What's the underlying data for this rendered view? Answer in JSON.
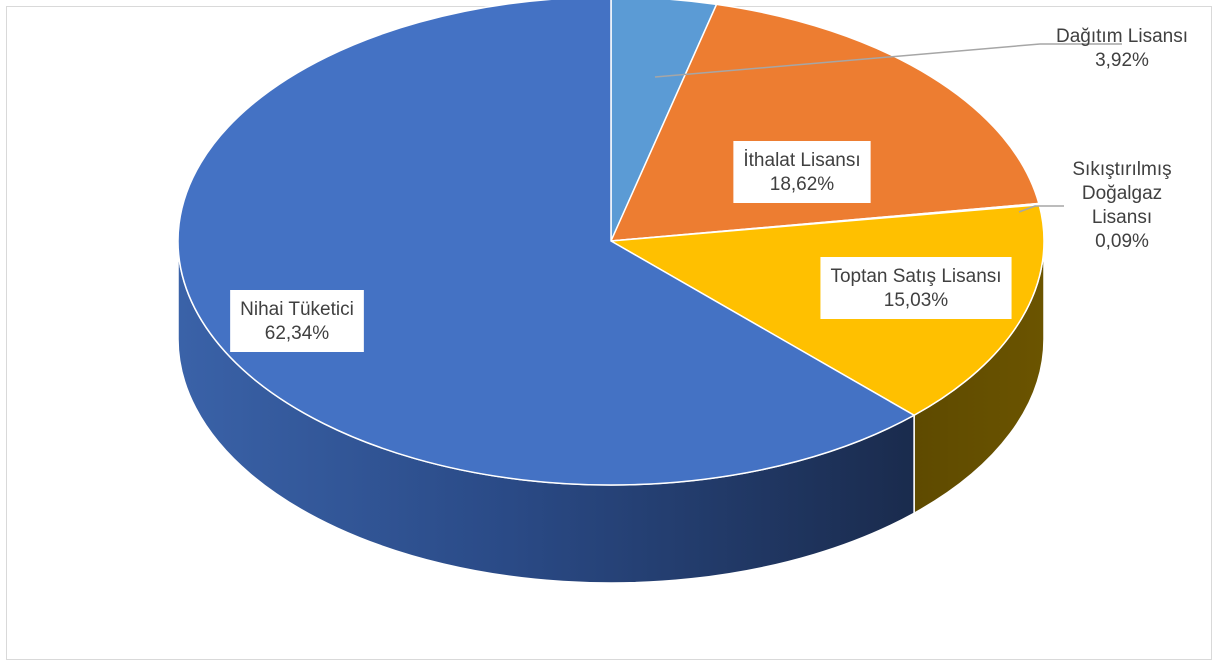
{
  "chart_data": {
    "type": "pie",
    "title": "",
    "slices": [
      {
        "label": "Dağıtım Lisansı",
        "value": 3.92,
        "display": "3,92%",
        "color": "#5b9bd5"
      },
      {
        "label": "İthalat Lisansı",
        "value": 18.62,
        "display": "18,62%",
        "color": "#ed7d31"
      },
      {
        "label": "Sıkıştırılmış Doğalgaz Lisansı",
        "label_lines": [
          "Sıkıştırılmış",
          "Doğalgaz",
          "Lisansı"
        ],
        "value": 0.09,
        "display": "0,09%",
        "color": "#a5a5a5"
      },
      {
        "label": "Toptan Satış Lisansı",
        "value": 15.03,
        "display": "15,03%",
        "color": "#ffc000"
      },
      {
        "label": "Nihai Tüketici",
        "value": 62.34,
        "display": "62,34%",
        "color": "#4472c4"
      }
    ],
    "legend": "none",
    "style": "3d"
  }
}
